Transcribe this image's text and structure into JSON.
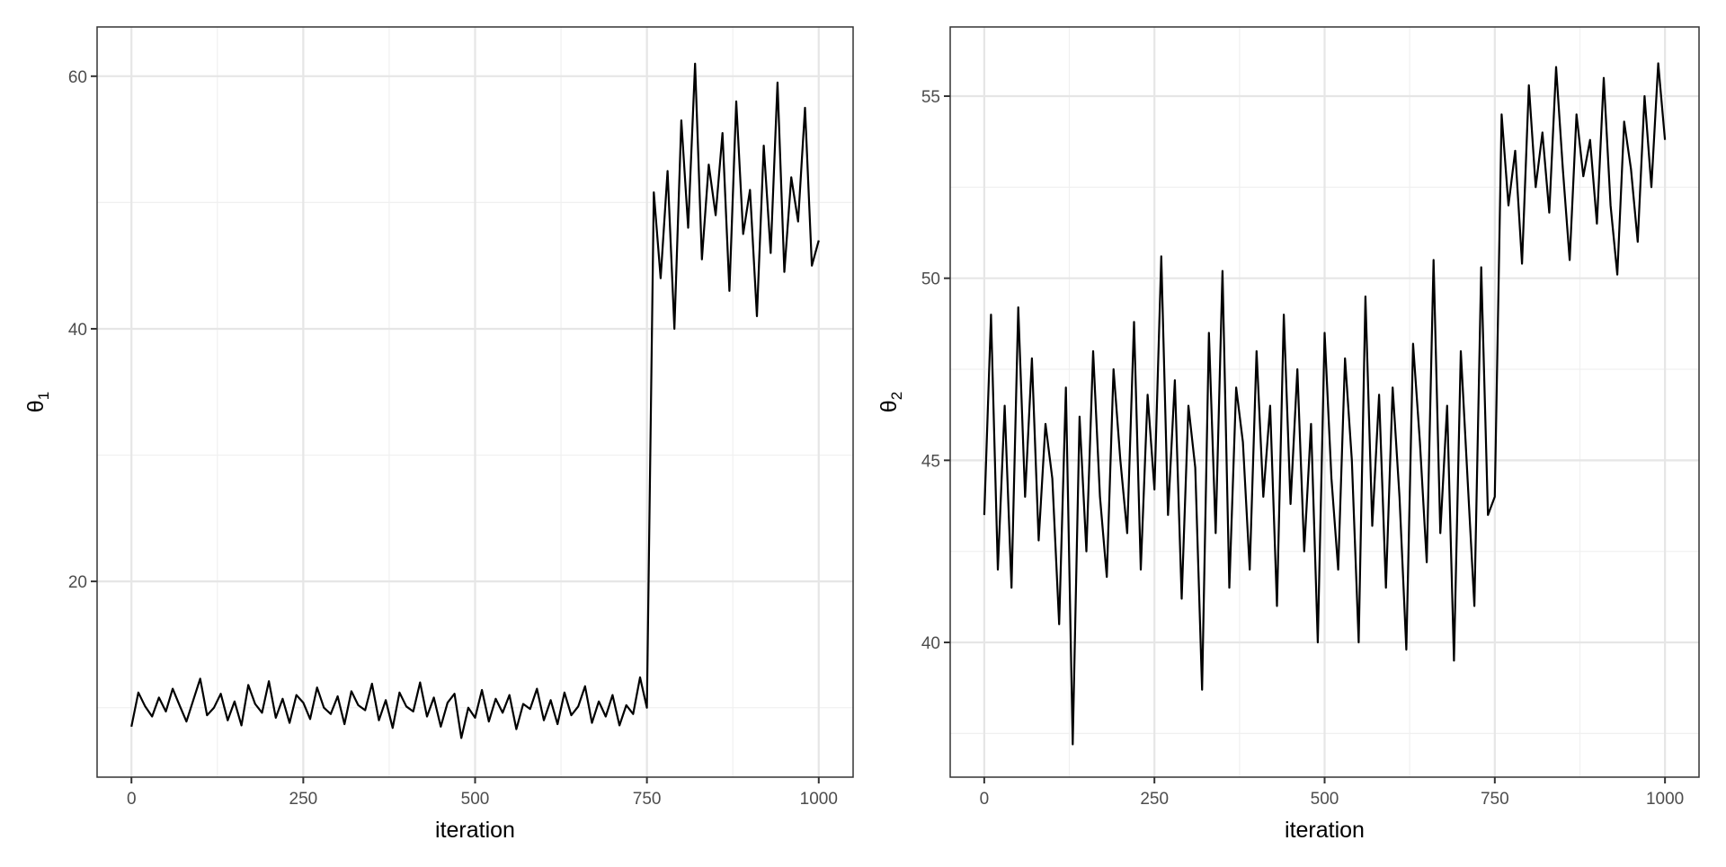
{
  "chart_data": [
    {
      "type": "line",
      "xlabel": "iteration",
      "ylabel": "θ",
      "ylabel_subscript": "1",
      "xlim": [
        -50,
        1050
      ],
      "ylim": [
        4.5,
        63.9
      ],
      "xticks": [
        0,
        250,
        500,
        750,
        1000
      ],
      "yticks": [
        20,
        40,
        60
      ],
      "grid": true,
      "line_color": "#000000",
      "x_step": 10,
      "values": [
        8.5,
        11.2,
        10.1,
        9.3,
        10.8,
        9.7,
        11.5,
        10.2,
        8.9,
        10.6,
        12.3,
        9.4,
        10.0,
        11.1,
        9.0,
        10.5,
        8.6,
        11.8,
        10.3,
        9.6,
        12.1,
        9.2,
        10.7,
        8.8,
        11.0,
        10.4,
        9.1,
        11.6,
        10.0,
        9.5,
        10.9,
        8.7,
        11.3,
        10.2,
        9.8,
        11.9,
        9.0,
        10.6,
        8.4,
        11.2,
        10.1,
        9.7,
        12.0,
        9.3,
        10.8,
        8.5,
        10.4,
        11.1,
        7.6,
        10.0,
        9.2,
        11.4,
        8.9,
        10.7,
        9.6,
        11.0,
        8.3,
        10.3,
        9.9,
        11.5,
        9.0,
        10.6,
        8.7,
        11.2,
        9.4,
        10.1,
        11.7,
        8.8,
        10.5,
        9.3,
        11.0,
        8.6,
        10.2,
        9.5,
        12.4,
        10.0,
        50.8,
        44.0,
        52.5,
        40.0,
        56.5,
        48.0,
        61.0,
        45.5,
        53.0,
        49.0,
        55.5,
        43.0,
        58.0,
        47.5,
        51.0,
        41.0,
        54.5,
        46.0,
        59.5,
        44.5,
        52.0,
        48.5,
        57.5,
        45.0,
        47.0
      ]
    },
    {
      "type": "line",
      "xlabel": "iteration",
      "ylabel": "θ",
      "ylabel_subscript": "2",
      "xlim": [
        -50,
        1050
      ],
      "ylim": [
        36.3,
        56.9
      ],
      "xticks": [
        0,
        250,
        500,
        750,
        1000
      ],
      "yticks": [
        40,
        45,
        50,
        55
      ],
      "grid": true,
      "line_color": "#000000",
      "x_step": 10,
      "values": [
        43.5,
        49.0,
        42.0,
        46.5,
        41.5,
        49.2,
        44.0,
        47.8,
        42.8,
        46.0,
        44.5,
        40.5,
        47.0,
        37.2,
        46.2,
        42.5,
        48.0,
        44.0,
        41.8,
        47.5,
        45.0,
        43.0,
        48.8,
        42.0,
        46.8,
        44.2,
        50.6,
        43.5,
        47.2,
        41.2,
        46.5,
        44.8,
        38.7,
        48.5,
        43.0,
        50.2,
        41.5,
        47.0,
        45.5,
        42.0,
        48.0,
        44.0,
        46.5,
        41.0,
        49.0,
        43.8,
        47.5,
        42.5,
        46.0,
        40.0,
        48.5,
        44.5,
        42.0,
        47.8,
        45.0,
        40.0,
        49.5,
        43.2,
        46.8,
        41.5,
        47.0,
        44.0,
        39.8,
        48.2,
        45.5,
        42.2,
        50.5,
        43.0,
        46.5,
        39.5,
        48.0,
        44.5,
        41.0,
        50.3,
        43.5,
        44.0,
        54.5,
        52.0,
        53.5,
        50.4,
        55.3,
        52.5,
        54.0,
        51.8,
        55.8,
        53.0,
        50.5,
        54.5,
        52.8,
        53.8,
        51.5,
        55.5,
        52.0,
        50.1,
        54.3,
        53.0,
        51.0,
        55.0,
        52.5,
        55.9,
        53.8
      ]
    }
  ]
}
